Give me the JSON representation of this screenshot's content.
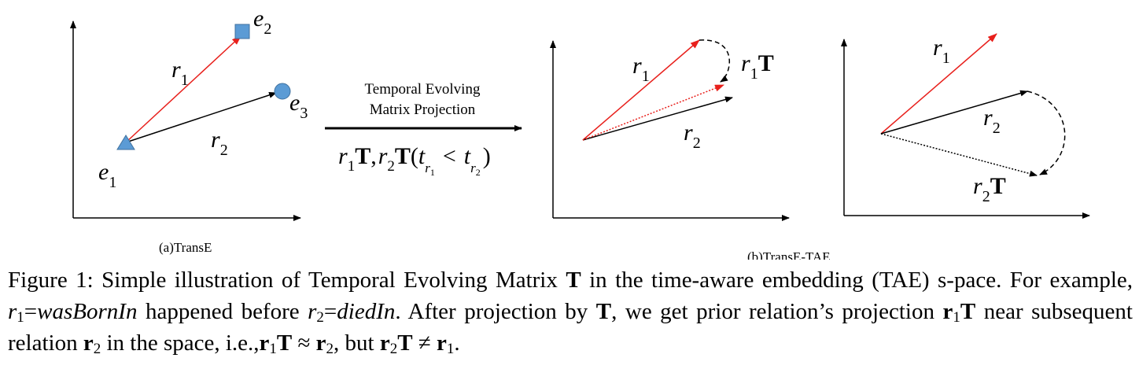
{
  "panel_a": {
    "caption": "(a)TransE",
    "entities": {
      "e1": "e",
      "e1_sub": "1",
      "e2": "e",
      "e2_sub": "2",
      "e3": "e",
      "e3_sub": "3"
    },
    "relations": {
      "r1": "r",
      "r1_sub": "1",
      "r2": "r",
      "r2_sub": "2"
    },
    "colors": {
      "r1_arrow": "#e8201c",
      "r2_arrow": "#000000",
      "marker_fill": "#5b9bd5"
    }
  },
  "transition": {
    "label_line1": "Temporal Evolving",
    "label_line2": "Matrix Projection",
    "formula": {
      "r": "r",
      "one": "1",
      "T": "T",
      "comma": ",",
      "two": "2",
      "paren_open": "(",
      "t": "t",
      "lt": "<",
      "paren_close": ")"
    }
  },
  "panel_b": {
    "caption": "(b)TransE-TAE",
    "left": {
      "r1": "r",
      "r1_sub": "1",
      "r2": "r",
      "r2_sub": "2",
      "r1T": "r",
      "r1T_sub": "1",
      "r1T_T": "T"
    },
    "right": {
      "r1": "r",
      "r1_sub": "1",
      "r2": "r",
      "r2_sub": "2",
      "r2T": "r",
      "r2T_sub": "2",
      "r2T_T": "T"
    }
  },
  "caption": {
    "prefix": "Figure 1: Simple illustration of Temporal Evolving Matrix ",
    "T": "T",
    "after_T": " in the time-aware embedding (TAE) s-pace. For example, ",
    "r": "r",
    "one": "1",
    "eq": "=",
    "was_born_in": "wasBornIn",
    "happened_before": " happened before ",
    "two": "2",
    "died_in": "diedIn",
    "after_projection": ". After projection by ",
    "we_get": ", we get prior relation’s projection ",
    "r_bold": "r",
    "near": " near subsequent relation ",
    "in_space": " in the space, i.e.,",
    "approx": " ≈ ",
    "but": ", but ",
    "neq": " ≠ ",
    "end": "."
  }
}
